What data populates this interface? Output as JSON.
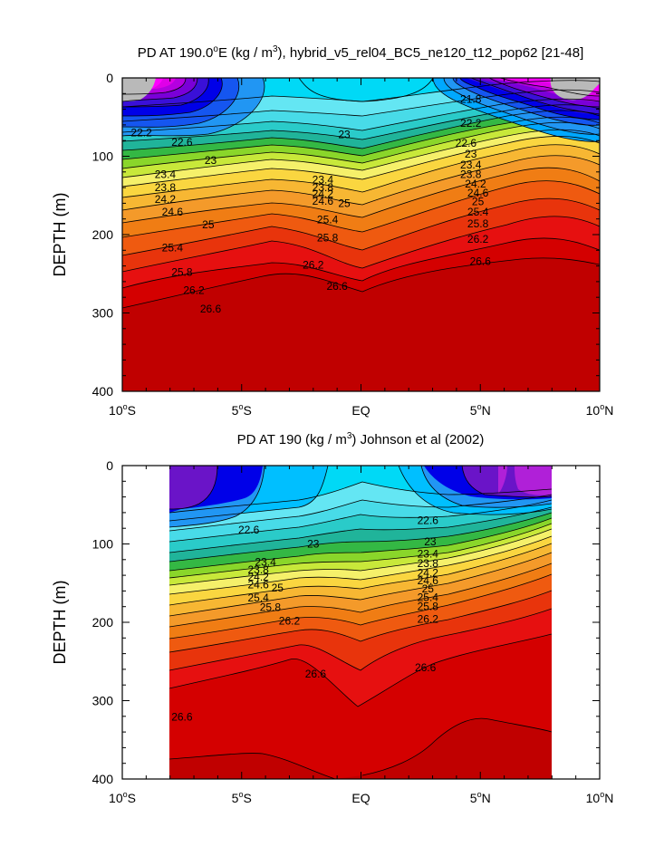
{
  "chart_data": [
    {
      "type": "contour",
      "title": "PD AT 190.0°E (kg / m³), hybrid_v5_rel04_BC5_ne120_t12_pop62 [21-48]",
      "title_parts": {
        "a": "PD AT 190.0",
        "deg": "o",
        "b": "E (kg / m",
        "sup": "3",
        "c": "), hybrid_v5_rel04_BC5_ne120_t12_pop62 [21-48]"
      },
      "xlabel": "",
      "ylabel": "DEPTH (m)",
      "x_range": [
        -10,
        10
      ],
      "x_ticks": [
        -10,
        -5,
        0,
        5,
        10
      ],
      "x_tick_labels": [
        {
          "num": "10",
          "deg": "o",
          "hem": "S"
        },
        {
          "num": "5",
          "deg": "o",
          "hem": "S"
        },
        {
          "num": "EQ",
          "deg": "",
          "hem": ""
        },
        {
          "num": "5",
          "deg": "o",
          "hem": "N"
        },
        {
          "num": "10",
          "deg": "o",
          "hem": "N"
        }
      ],
      "y_range": [
        0,
        400
      ],
      "y_reversed": true,
      "y_ticks": [
        "0",
        "100",
        "200",
        "300",
        "400"
      ],
      "data_x_extent": [
        -10,
        10
      ],
      "labeled_levels": [
        "21.8",
        "22.2",
        "22.6",
        "23",
        "23.4",
        "23.8",
        "24.2",
        "24.6",
        "25",
        "25.4",
        "25.8",
        "26.2",
        "26.6"
      ],
      "contour_labels": [
        {
          "text": "22.2",
          "x": -9.2,
          "y": 70
        },
        {
          "text": "22.6",
          "x": -7.5,
          "y": 82
        },
        {
          "text": "23",
          "x": -6.3,
          "y": 105
        },
        {
          "text": "23.4",
          "x": -8.2,
          "y": 123
        },
        {
          "text": "23.8",
          "x": -8.2,
          "y": 140
        },
        {
          "text": "24.2",
          "x": -8.2,
          "y": 155
        },
        {
          "text": "24.6",
          "x": -7.9,
          "y": 171
        },
        {
          "text": "25",
          "x": -6.4,
          "y": 187
        },
        {
          "text": "25.4",
          "x": -7.9,
          "y": 217
        },
        {
          "text": "25.8",
          "x": -7.5,
          "y": 248
        },
        {
          "text": "26.2",
          "x": -7.0,
          "y": 271
        },
        {
          "text": "26.6",
          "x": -6.3,
          "y": 295
        },
        {
          "text": "23",
          "x": -0.7,
          "y": 72
        },
        {
          "text": "23.4",
          "x": -1.6,
          "y": 130
        },
        {
          "text": "23.8",
          "x": -1.6,
          "y": 140
        },
        {
          "text": "24.2",
          "x": -1.6,
          "y": 148
        },
        {
          "text": "24.6",
          "x": -1.6,
          "y": 157
        },
        {
          "text": "25",
          "x": -0.7,
          "y": 160
        },
        {
          "text": "25.4",
          "x": -1.4,
          "y": 181
        },
        {
          "text": "25.8",
          "x": -1.4,
          "y": 204
        },
        {
          "text": "26.2",
          "x": -2.0,
          "y": 239
        },
        {
          "text": "26.6",
          "x": -1.0,
          "y": 266
        },
        {
          "text": "21.8",
          "x": 4.6,
          "y": 27
        },
        {
          "text": "22.2",
          "x": 4.6,
          "y": 58
        },
        {
          "text": "22.6",
          "x": 4.4,
          "y": 83
        },
        {
          "text": "23",
          "x": 4.6,
          "y": 97
        },
        {
          "text": "23.4",
          "x": 4.6,
          "y": 111
        },
        {
          "text": "23.8",
          "x": 4.6,
          "y": 123
        },
        {
          "text": "24.2",
          "x": 4.8,
          "y": 135
        },
        {
          "text": "24.6",
          "x": 4.9,
          "y": 147
        },
        {
          "text": "25",
          "x": 4.9,
          "y": 158
        },
        {
          "text": "25.4",
          "x": 4.9,
          "y": 171
        },
        {
          "text": "25.8",
          "x": 4.9,
          "y": 186
        },
        {
          "text": "26.2",
          "x": 4.9,
          "y": 206
        },
        {
          "text": "26.6",
          "x": 5.0,
          "y": 234
        }
      ]
    },
    {
      "type": "contour",
      "title": "PD AT 190 (kg / m³) Johnson et al (2002)",
      "title_parts": {
        "a": "PD AT 190 (kg / m",
        "sup": "3",
        "c": ") Johnson et al (2002)"
      },
      "xlabel": "",
      "ylabel": "DEPTH (m)",
      "x_range": [
        -10,
        10
      ],
      "x_ticks": [
        -10,
        -5,
        0,
        5,
        10
      ],
      "x_tick_labels": [
        {
          "num": "10",
          "deg": "o",
          "hem": "S"
        },
        {
          "num": "5",
          "deg": "o",
          "hem": "S"
        },
        {
          "num": "EQ",
          "deg": "",
          "hem": ""
        },
        {
          "num": "5",
          "deg": "o",
          "hem": "N"
        },
        {
          "num": "10",
          "deg": "o",
          "hem": "N"
        }
      ],
      "y_range": [
        0,
        400
      ],
      "y_reversed": true,
      "y_ticks": [
        "0",
        "100",
        "200",
        "300",
        "400"
      ],
      "data_x_extent": [
        -8,
        8
      ],
      "labeled_levels": [
        "22.6",
        "23",
        "23.4",
        "23.8",
        "24.2",
        "24.6",
        "25",
        "25.4",
        "25.8",
        "26.2",
        "26.6"
      ],
      "contour_labels": [
        {
          "text": "22.6",
          "x": -4.7,
          "y": 82
        },
        {
          "text": "23",
          "x": -2.0,
          "y": 100
        },
        {
          "text": "23.4",
          "x": -4.0,
          "y": 123
        },
        {
          "text": "23.8",
          "x": -4.3,
          "y": 133
        },
        {
          "text": "24.2",
          "x": -4.3,
          "y": 142
        },
        {
          "text": "24.6",
          "x": -4.3,
          "y": 152
        },
        {
          "text": "25",
          "x": -3.5,
          "y": 156
        },
        {
          "text": "25.4",
          "x": -4.3,
          "y": 169
        },
        {
          "text": "25.8",
          "x": -3.8,
          "y": 181
        },
        {
          "text": "26.2",
          "x": -3.0,
          "y": 198
        },
        {
          "text": "26.6",
          "x": -1.9,
          "y": 266
        },
        {
          "text": "26.6",
          "x": -7.5,
          "y": 321
        },
        {
          "text": "22.6",
          "x": 2.8,
          "y": 70
        },
        {
          "text": "23",
          "x": 2.9,
          "y": 97
        },
        {
          "text": "23.4",
          "x": 2.8,
          "y": 113
        },
        {
          "text": "23.8",
          "x": 2.8,
          "y": 125
        },
        {
          "text": "24.2",
          "x": 2.8,
          "y": 137
        },
        {
          "text": "24.6",
          "x": 2.8,
          "y": 147
        },
        {
          "text": "25",
          "x": 2.8,
          "y": 157
        },
        {
          "text": "25.4",
          "x": 2.8,
          "y": 168
        },
        {
          "text": "25.8",
          "x": 2.8,
          "y": 180
        },
        {
          "text": "26.2",
          "x": 2.8,
          "y": 196
        },
        {
          "text": "26.6",
          "x": 2.7,
          "y": 258
        }
      ]
    }
  ]
}
